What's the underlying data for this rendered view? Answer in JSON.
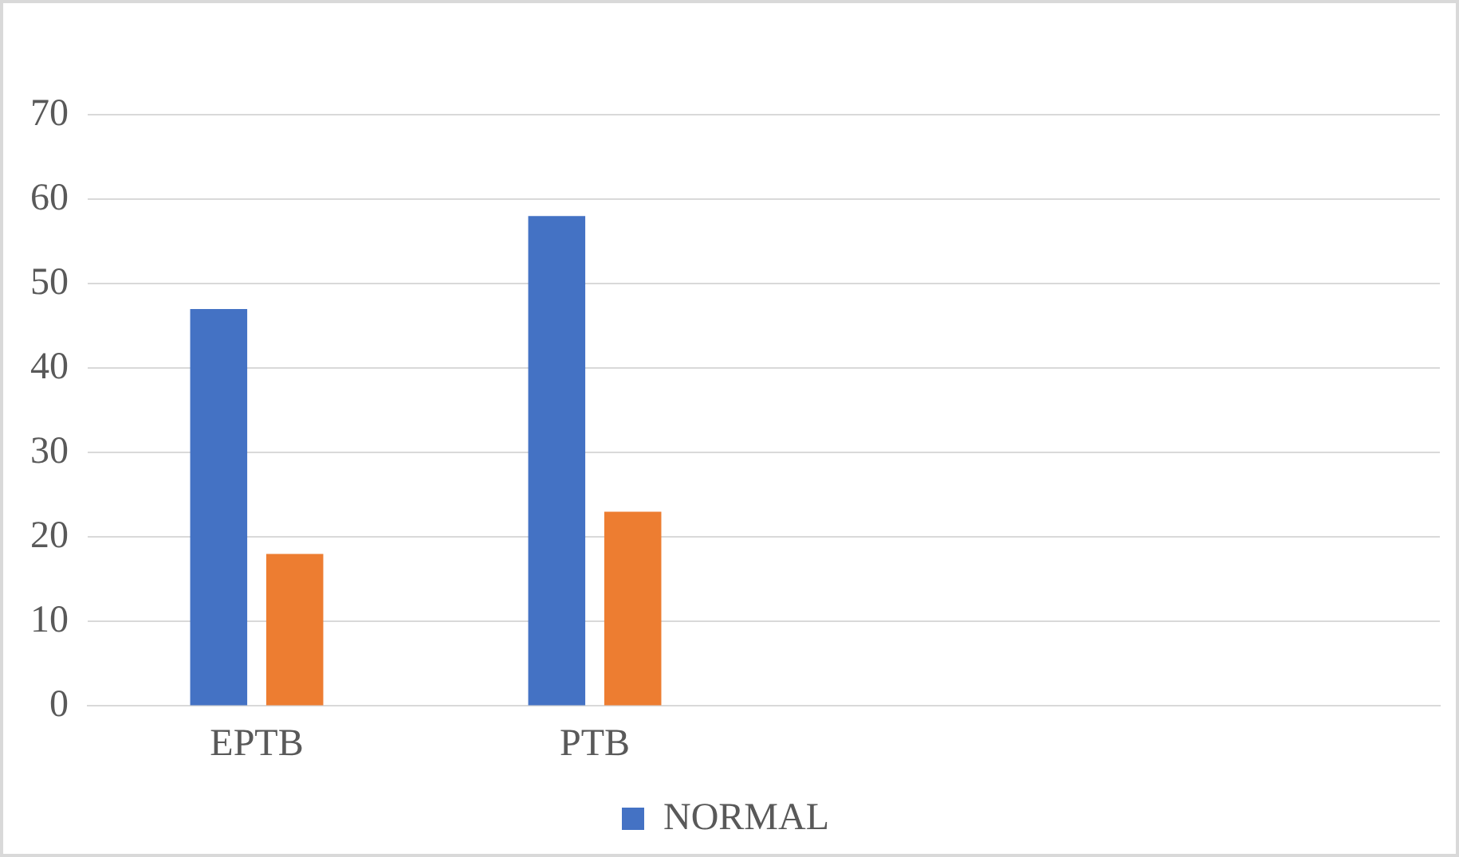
{
  "chart_data": {
    "type": "bar",
    "categories": [
      "EPTB",
      "PTB",
      null,
      null
    ],
    "series": [
      {
        "name": "NORMAL",
        "color": "#4472c4",
        "values": [
          47,
          58,
          null,
          null
        ]
      },
      {
        "color": "#ed7d31",
        "values": [
          18,
          23,
          null,
          null
        ]
      }
    ],
    "ylim": [
      0,
      70
    ],
    "yticks": [
      0,
      10,
      20,
      30,
      40,
      50,
      60,
      70
    ],
    "grid": "y",
    "legend": "bottom"
  }
}
